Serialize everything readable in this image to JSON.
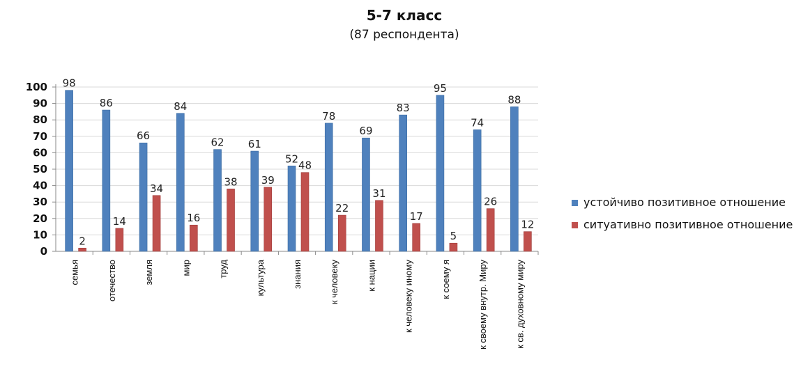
{
  "chart_data": {
    "type": "bar",
    "title": "5-7 класс",
    "subtitle": "(87 респондента)",
    "xlabel": "",
    "ylabel": "",
    "ylim": [
      0,
      100
    ],
    "yticks": [
      "0",
      "10",
      "20",
      "30",
      "40",
      "50",
      "60",
      "70",
      "80",
      "90",
      "100"
    ],
    "grid": true,
    "legend_position": "right",
    "categories": [
      "семья",
      "отечество",
      "земля",
      "мир",
      "труд",
      "культура",
      "знания",
      "к человеку",
      "к нации",
      "к человеку иному",
      "к соему я",
      "к своему внутр. Миру",
      "к св. духовному миру"
    ],
    "series": [
      {
        "name": "устойчиво позитивное отношение",
        "color": "#4f81bd",
        "values": [
          98,
          86,
          66,
          84,
          62,
          61,
          52,
          78,
          69,
          83,
          95,
          74,
          88
        ]
      },
      {
        "name": "ситуативно позитивное отношение",
        "color": "#c0504d",
        "values": [
          2,
          14,
          34,
          16,
          38,
          39,
          48,
          22,
          31,
          17,
          5,
          26,
          12
        ]
      }
    ]
  }
}
